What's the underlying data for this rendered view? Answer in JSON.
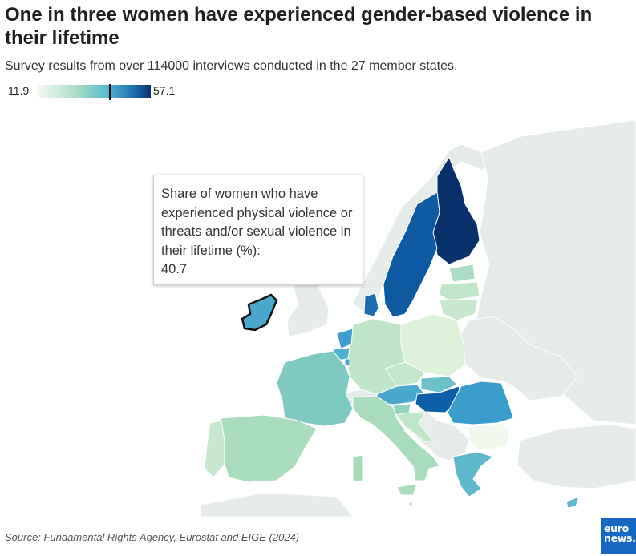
{
  "header": {
    "title": "One in three women have experienced gender-based violence in their lifetime",
    "subtitle": "Survey results from over 114000 interviews conducted in the 27 member states."
  },
  "legend": {
    "min_label": "11.9",
    "max_label": "57.1",
    "min": 11.9,
    "max": 57.1,
    "marker_value": 40.7,
    "colors": [
      "#f2f9f1",
      "#a8dcc4",
      "#5cbbd0",
      "#1d6cb0",
      "#08306b"
    ]
  },
  "tooltip": {
    "label": "Share of women who have experienced physical violence or threats and/or sexual violence in their lifetime (%):",
    "value": "40.7"
  },
  "map": {
    "background_land_color": "#e6ecea",
    "sea_color": "#ffffff",
    "highlighted_country": "Ireland",
    "country_colors": {
      "Finland": "#08306b",
      "Sweden": "#0d5aa3",
      "Denmark": "#1d6cb0",
      "Ireland": "#4aa8cf",
      "Netherlands": "#3d9fce",
      "Belgium": "#4fb0d1",
      "France": "#7ec9c2",
      "Spain": "#a8dcbc",
      "Portugal": "#c7e8cf",
      "Germany": "#bde5c6",
      "Poland": "#def2da",
      "Czechia": "#c2e7cc",
      "Slovakia": "#6cc0c9",
      "Hungary": "#0f5ea8",
      "Austria": "#4aa8cf",
      "Italy": "#a8dcbc",
      "Slovenia": "#8ed2c1",
      "Croatia": "#bfe6c8",
      "Romania": "#3b9dcc",
      "Bulgaria": "#f0f8ee",
      "Greece": "#5db8cd",
      "Cyprus": "#5db8cd",
      "Lithuania": "#c7e8cf",
      "Latvia": "#bfe6c8",
      "Estonia": "#a9dcc4",
      "Luxembourg": "#4aa8cf",
      "Malta": "#a8dcbc"
    }
  },
  "footer": {
    "source_prefix": "Source:",
    "source_link": "Fundamental Rights Agency, Eurostat and EIGE (2024)",
    "logo_line1": "euro",
    "logo_line2": "news."
  }
}
